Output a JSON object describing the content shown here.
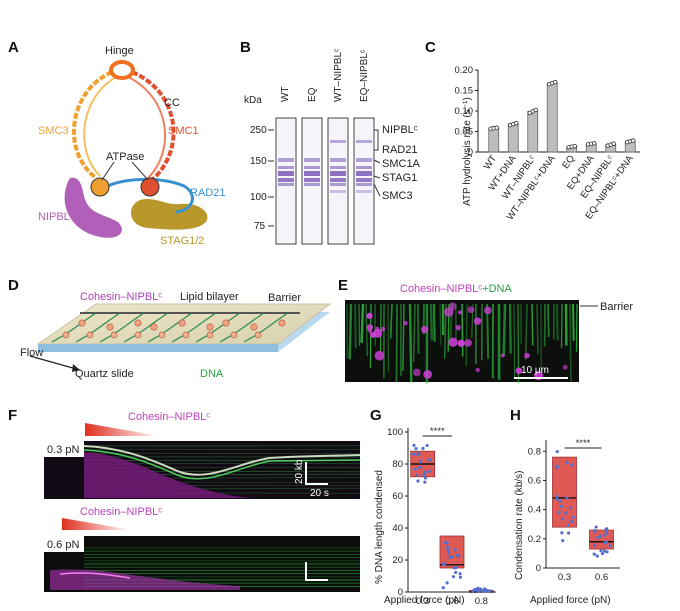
{
  "panels": {
    "A": "A",
    "B": "B",
    "C": "C",
    "D": "D",
    "E": "E",
    "F": "F",
    "G": "G",
    "H": "H"
  },
  "panel_a": {
    "hinge": "Hinge",
    "cc": "CC",
    "smc3": "SMC3",
    "smc1": "SMC1",
    "atpase": "ATPase",
    "rad21": "RAD21",
    "nipbl": "NIPBL",
    "stag": "STAG1/2",
    "colors": {
      "smc3": "#f0a030",
      "smc1": "#e05030",
      "rad21": "#3a90cf",
      "nipbl": "#b060b8",
      "stag": "#b8982a"
    }
  },
  "panel_b": {
    "kda": "kDa",
    "lanes": [
      "WT",
      "EQ",
      "WT–NIPBLᶜ",
      "EQ–NIPBLᶜ"
    ],
    "markers": [
      "250",
      "150",
      "100",
      "75"
    ],
    "proteins": [
      "NIPBLᶜ",
      "RAD21",
      "SMC1A",
      "STAG1",
      "SMC3"
    ]
  },
  "chart_data": [
    {
      "type": "bar",
      "panel": "C",
      "ylabel": "ATP hydrolysis rate (s⁻¹)",
      "ylim": [
        0,
        0.2
      ],
      "yticks": [
        "0",
        "0.05",
        "0.10",
        "0.15",
        "0.20"
      ],
      "categories": [
        "WT",
        "WT+DNA",
        "WT–NIPBLᶜ",
        "WT–NIPBLᶜ+DNA",
        "EQ",
        "EQ+DNA",
        "EQ–NIPBLᶜ",
        "EQ–NIPBLᶜ+DNA"
      ],
      "values": [
        0.058,
        0.068,
        0.099,
        0.168,
        0.013,
        0.02,
        0.018,
        0.026
      ],
      "errors": [
        0.002,
        0.004,
        0.006,
        0.004,
        0.002,
        0.002,
        0.004,
        0.003
      ]
    },
    {
      "type": "box",
      "panel": "G",
      "ylabel": "% DNA length condensed",
      "xlabel": "Applied force (pN)",
      "ylim": [
        0,
        100
      ],
      "yticks": [
        "0",
        "20",
        "40",
        "60",
        "80",
        "100"
      ],
      "categories": [
        "0.3",
        "0.6",
        "0.8"
      ],
      "boxes": [
        {
          "q1": 72,
          "median": 80,
          "q3": 88
        },
        {
          "q1": 15,
          "median": 17,
          "q3": 35
        },
        {
          "q1": 0,
          "median": 0,
          "q3": 1
        }
      ],
      "significance": "****"
    },
    {
      "type": "box",
      "panel": "H",
      "ylabel": "Condensation rate (kb/s)",
      "xlabel": "Applied force (pN)",
      "ylim": [
        0,
        0.85
      ],
      "yticks": [
        "0",
        "0.2",
        "0.4",
        "0.6",
        "0.8"
      ],
      "categories": [
        "0.3",
        "0.6"
      ],
      "boxes": [
        {
          "q1": 0.28,
          "median": 0.48,
          "q3": 0.76
        },
        {
          "q1": 0.13,
          "median": 0.18,
          "q3": 0.26
        }
      ],
      "significance": "****"
    }
  ],
  "panel_d": {
    "cohesin": "Cohesin–NIPBLᶜ",
    "lipid": "Lipid bilayer",
    "barrier": "Barrier",
    "flow": "Flow",
    "quartz": "Quartz slide",
    "dna": "DNA"
  },
  "panel_e": {
    "title_a": "Cohesin–NIPBLᶜ",
    "title_b": "+DNA",
    "barrier": "Barrier",
    "scale": "10 μm"
  },
  "panel_f": {
    "cohesin": "Cohesin–NIPBLᶜ",
    "force1": "0.3 pN",
    "force2": "0.6 pN",
    "scale_kb": "20 kb",
    "scale_s": "20 s"
  },
  "colors": {
    "magenta": "#c040c0",
    "green": "#2aa040",
    "red": "#e03020",
    "box_fill": "#e05a55",
    "dot": "#5570cc"
  }
}
